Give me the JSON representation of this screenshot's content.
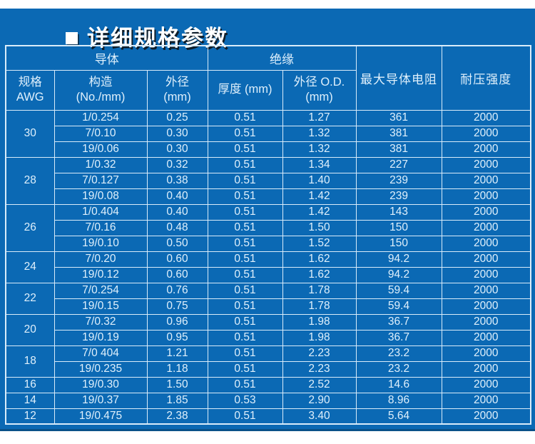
{
  "title": {
    "bullet": "■",
    "text": "详细规格参数"
  },
  "colors": {
    "blue": "#0b69b4",
    "blue_dark": "#0a5188",
    "line": "#d9ecfa",
    "txt": "#dff0fc"
  },
  "table": {
    "header": {
      "conductor_group": "导体",
      "insulation_group": "绝缘",
      "awg_line1": "规格",
      "awg_line2": "AWG",
      "construction_line1": "构造",
      "construction_line2": "(No./mm)",
      "outer_dia_line1": "外径",
      "outer_dia_line2": "(mm)",
      "thickness": "厚度  (mm)",
      "ins_od_line1": "外径  O.D.",
      "ins_od_line2": "(mm)",
      "max_resistance": "最大导体电阻",
      "voltage": "耐压强度"
    },
    "groups": [
      {
        "awg": "30",
        "rows": [
          [
            "1/0.254",
            "0.25",
            "0.51",
            "1.27",
            "361",
            "2000"
          ],
          [
            "7/0.10",
            "0.30",
            "0.51",
            "1.32",
            "381",
            "2000"
          ],
          [
            "19/0.06",
            "0.30",
            "0.51",
            "1.32",
            "381",
            "2000"
          ]
        ]
      },
      {
        "awg": "28",
        "rows": [
          [
            "1/0.32",
            "0.32",
            "0.51",
            "1.34",
            "227",
            "2000"
          ],
          [
            "7/0.127",
            "0.38",
            "0.51",
            "1.40",
            "239",
            "2000"
          ],
          [
            "19/0.08",
            "0.40",
            "0.51",
            "1.42",
            "239",
            "2000"
          ]
        ]
      },
      {
        "awg": "26",
        "rows": [
          [
            "1/0.404",
            "0.40",
            "0.51",
            "1.42",
            "143",
            "2000"
          ],
          [
            "7/0.16",
            "0.48",
            "0.51",
            "1.50",
            "150",
            "2000"
          ],
          [
            "19/0.10",
            "0.50",
            "0.51",
            "1.52",
            "150",
            "2000"
          ]
        ]
      },
      {
        "awg": "24",
        "rows": [
          [
            "7/0.20",
            "0.60",
            "0.51",
            "1.62",
            "94.2",
            "2000"
          ],
          [
            "19/0.12",
            "0.60",
            "0.51",
            "1.62",
            "94.2",
            "2000"
          ]
        ]
      },
      {
        "awg": "22",
        "rows": [
          [
            "7/0.254",
            "0.76",
            "0.51",
            "1.78",
            "59.4",
            "2000"
          ],
          [
            "19/0.15",
            "0.75",
            "0.51",
            "1.78",
            "59.4",
            "2000"
          ]
        ]
      },
      {
        "awg": "20",
        "rows": [
          [
            "7/0.32",
            "0.96",
            "0.51",
            "1.98",
            "36.7",
            "2000"
          ],
          [
            "19/0.19",
            "0.95",
            "0.51",
            "1.98",
            "36.7",
            "2000"
          ]
        ]
      },
      {
        "awg": "18",
        "rows": [
          [
            "7/0 404",
            "1.21",
            "0.51",
            "2.23",
            "23.2",
            "2000"
          ],
          [
            "19/0.235",
            "1.18",
            "0.51",
            "2.23",
            "23.2",
            "2000"
          ]
        ]
      },
      {
        "awg": "16",
        "rows": [
          [
            "19/0.30",
            "1.50",
            "0.51",
            "2.52",
            "14.6",
            "2000"
          ]
        ]
      },
      {
        "awg": "14",
        "rows": [
          [
            "19/0.37",
            "1.85",
            "0.53",
            "2.90",
            "8.96",
            "2000"
          ]
        ]
      },
      {
        "awg": "12",
        "rows": [
          [
            "19/0.475",
            "2.38",
            "0.51",
            "3.40",
            "5.64",
            "2000"
          ]
        ]
      }
    ]
  }
}
